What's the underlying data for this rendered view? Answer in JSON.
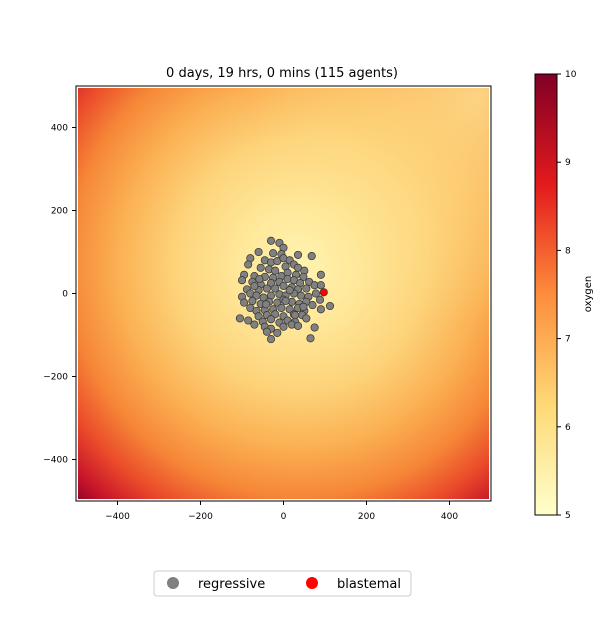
{
  "chart_data": {
    "type": "scatter",
    "title": "0 days, 19 hrs, 0 mins (115 agents)",
    "xlabel": "",
    "ylabel": "",
    "xlim": [
      -500,
      500
    ],
    "ylim": [
      -500,
      500
    ],
    "x_ticks": [
      -400,
      -200,
      0,
      200,
      400
    ],
    "y_ticks": [
      -400,
      -200,
      0,
      200,
      400
    ],
    "x_tick_labels": [
      "−400",
      "−200",
      "0",
      "200",
      "400"
    ],
    "y_tick_labels": [
      "−400",
      "−200",
      "0",
      "200",
      "400"
    ],
    "background_field": {
      "name": "oxygen",
      "colormap": "YlOrRd",
      "low_value_region": "near cluster and upper-right",
      "high_value_region": "lower-left edges"
    },
    "colorbar": {
      "label": "oxygen",
      "vmin": 5,
      "vmax": 10,
      "ticks": [
        5,
        6,
        7,
        8,
        9,
        10
      ],
      "tick_labels": [
        "5",
        "6",
        "7",
        "8",
        "9",
        "10"
      ]
    },
    "series": [
      {
        "name": "regressive",
        "color": "#808080",
        "points": [
          [
            -30,
            127
          ],
          [
            -10,
            122
          ],
          [
            0,
            110
          ],
          [
            -60,
            100
          ],
          [
            -25,
            97
          ],
          [
            -5,
            95
          ],
          [
            35,
            93
          ],
          [
            68,
            90
          ],
          [
            -80,
            85
          ],
          [
            -45,
            80
          ],
          [
            -30,
            75
          ],
          [
            -15,
            78
          ],
          [
            0,
            85
          ],
          [
            15,
            80
          ],
          [
            25,
            70
          ],
          [
            -85,
            70
          ],
          [
            -55,
            62
          ],
          [
            -35,
            58
          ],
          [
            -20,
            55
          ],
          [
            5,
            65
          ],
          [
            35,
            62
          ],
          [
            50,
            55
          ],
          [
            -95,
            45
          ],
          [
            -70,
            42
          ],
          [
            -45,
            40
          ],
          [
            -25,
            38
          ],
          [
            -5,
            42
          ],
          [
            10,
            50
          ],
          [
            30,
            45
          ],
          [
            48,
            40
          ],
          [
            90,
            45
          ],
          [
            -100,
            32
          ],
          [
            -75,
            28
          ],
          [
            -55,
            22
          ],
          [
            -30,
            25
          ],
          [
            -10,
            28
          ],
          [
            10,
            35
          ],
          [
            25,
            32
          ],
          [
            40,
            25
          ],
          [
            62,
            28
          ],
          [
            75,
            20
          ],
          [
            90,
            20
          ],
          [
            -88,
            10
          ],
          [
            -60,
            8
          ],
          [
            -40,
            12
          ],
          [
            -20,
            12
          ],
          [
            0,
            18
          ],
          [
            20,
            15
          ],
          [
            35,
            10
          ],
          [
            55,
            12
          ],
          [
            -100,
            -8
          ],
          [
            -80,
            0
          ],
          [
            -65,
            -5
          ],
          [
            -48,
            -10
          ],
          [
            -30,
            -5
          ],
          [
            -10,
            -2
          ],
          [
            5,
            -5
          ],
          [
            25,
            0
          ],
          [
            42,
            -5
          ],
          [
            60,
            -8
          ],
          [
            78,
            0
          ],
          [
            88,
            -15
          ],
          [
            -95,
            -22
          ],
          [
            -75,
            -18
          ],
          [
            -55,
            -25
          ],
          [
            -35,
            -20
          ],
          [
            -15,
            -22
          ],
          [
            0,
            -15
          ],
          [
            20,
            -20
          ],
          [
            38,
            -25
          ],
          [
            55,
            -20
          ],
          [
            70,
            -28
          ],
          [
            -80,
            -35
          ],
          [
            -65,
            -42
          ],
          [
            -45,
            -40
          ],
          [
            -25,
            -38
          ],
          [
            -5,
            -35
          ],
          [
            15,
            -38
          ],
          [
            35,
            -35
          ],
          [
            50,
            -42
          ],
          [
            90,
            -38
          ],
          [
            112,
            -30
          ],
          [
            -60,
            -55
          ],
          [
            -40,
            -52
          ],
          [
            -20,
            -50
          ],
          [
            0,
            -55
          ],
          [
            25,
            -50
          ],
          [
            45,
            -52
          ],
          [
            -105,
            -60
          ],
          [
            -85,
            -65
          ],
          [
            -50,
            -68
          ],
          [
            -30,
            -62
          ],
          [
            -10,
            -70
          ],
          [
            10,
            -65
          ],
          [
            28,
            -68
          ],
          [
            55,
            -60
          ],
          [
            -70,
            -75
          ],
          [
            -45,
            -80
          ],
          [
            -30,
            -85
          ],
          [
            0,
            -80
          ],
          [
            20,
            -75
          ],
          [
            35,
            -78
          ],
          [
            75,
            -82
          ],
          [
            -40,
            -92
          ],
          [
            -15,
            -95
          ],
          [
            -30,
            -110
          ],
          [
            65,
            -108
          ],
          [
            5,
            -18
          ],
          [
            -42,
            -26
          ],
          [
            15,
            8
          ],
          [
            -70,
            18
          ],
          [
            48,
            -32
          ],
          [
            -58,
            35
          ],
          [
            28,
            -52
          ]
        ]
      },
      {
        "name": "blastemal",
        "color": "#ff0000",
        "points": [
          [
            97,
            3
          ]
        ]
      }
    ],
    "legend": {
      "placement": "bottom-center, outside plot",
      "entries": [
        {
          "label": "regressive",
          "color": "#808080"
        },
        {
          "label": "blastemal",
          "color": "#ff0000"
        }
      ]
    }
  }
}
